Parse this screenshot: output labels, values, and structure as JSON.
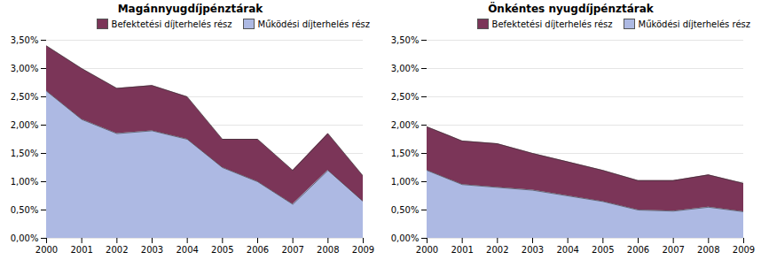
{
  "chart_data": [
    {
      "type": "area",
      "title": "Magánnyugdíjpénztárak",
      "x": [
        2000,
        2001,
        2002,
        2003,
        2004,
        2005,
        2006,
        2007,
        2008,
        2009
      ],
      "series": [
        {
          "name": "Működési díjterhelés rész",
          "color": "#adb9e3",
          "values": [
            0.026,
            0.021,
            0.0185,
            0.019,
            0.0175,
            0.0125,
            0.01,
            0.006,
            0.012,
            0.0065
          ]
        },
        {
          "name": "Befektetési díjterhelés rész",
          "color": "#7b3558",
          "values": [
            0.008,
            0.009,
            0.008,
            0.008,
            0.0075,
            0.005,
            0.0075,
            0.006,
            0.0065,
            0.0045
          ]
        }
      ],
      "stacked": true,
      "xlim": [
        2000,
        2009
      ],
      "xticks": [
        2000,
        2001,
        2002,
        2003,
        2004,
        2005,
        2006,
        2007,
        2008,
        2009
      ],
      "ylim": [
        0,
        0.035
      ],
      "yticks": [
        {
          "value": 0,
          "label": "0,00%"
        },
        {
          "value": 0.005,
          "label": "0,50%"
        },
        {
          "value": 0.01,
          "label": "1,00%"
        },
        {
          "value": 0.015,
          "label": "1,50%"
        },
        {
          "value": 0.02,
          "label": "2,00%"
        },
        {
          "value": 0.025,
          "label": "2,50%"
        },
        {
          "value": 0.03,
          "label": "3,00%"
        },
        {
          "value": 0.035,
          "label": "3,50%"
        }
      ],
      "grid": true,
      "legend": "upper right"
    },
    {
      "type": "area",
      "title": "Önkéntes nyugdíjpénztárak",
      "x": [
        2000,
        2001,
        2002,
        2003,
        2004,
        2005,
        2006,
        2007,
        2008,
        2009
      ],
      "series": [
        {
          "name": "Működési díjterhelés rész",
          "color": "#adb9e3",
          "values": [
            0.012,
            0.0095,
            0.009,
            0.0085,
            0.0075,
            0.0065,
            0.005,
            0.0048,
            0.0055,
            0.0047
          ]
        },
        {
          "name": "Befektetési díjterhelés rész",
          "color": "#7b3558",
          "values": [
            0.0077,
            0.0077,
            0.0077,
            0.0065,
            0.006,
            0.0055,
            0.0052,
            0.0054,
            0.0057,
            0.005
          ]
        }
      ],
      "stacked": true,
      "xlim": [
        2000,
        2009
      ],
      "xticks": [
        2000,
        2001,
        2002,
        2003,
        2004,
        2005,
        2006,
        2007,
        2008,
        2009
      ],
      "ylim": [
        0,
        0.035
      ],
      "yticks": [
        {
          "value": 0,
          "label": "0,00%"
        },
        {
          "value": 0.005,
          "label": "0,50%"
        },
        {
          "value": 0.01,
          "label": "1,00%"
        },
        {
          "value": 0.015,
          "label": "1,50%"
        },
        {
          "value": 0.02,
          "label": "2,00%"
        },
        {
          "value": 0.025,
          "label": "2,50%"
        },
        {
          "value": 0.03,
          "label": "3,00%"
        },
        {
          "value": 0.035,
          "label": "3,50%"
        }
      ],
      "grid": true,
      "legend": "upper right"
    }
  ]
}
